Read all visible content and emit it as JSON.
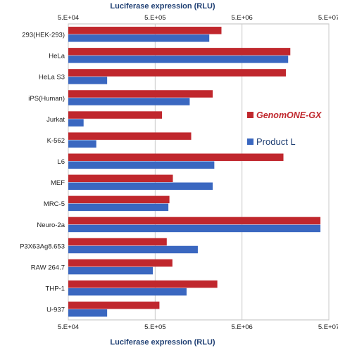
{
  "chart_data": {
    "type": "bar",
    "orientation": "horizontal",
    "x_scale": "log",
    "xlabel_top": "Luciferase expression (RLU)",
    "xlabel_bottom": "Luciferase expression (RLU)",
    "xlim": [
      50000,
      50000000
    ],
    "x_ticks": [
      50000,
      500000,
      5000000,
      50000000
    ],
    "x_tick_labels": [
      "5.E+04",
      "5.E+05",
      "5.E+06",
      "5.E+07"
    ],
    "grid": "vertical",
    "legend_position": "right",
    "categories": [
      "293(HEK-293)",
      "HeLa",
      "HeLa S3",
      "iPS(Human)",
      "Jurkat",
      "K-562",
      "L6",
      "MEF",
      "MRC-5",
      "Neuro-2a",
      "P3X63Ag8.653",
      "RAW 264.7",
      "THP-1",
      "U-937"
    ],
    "series": [
      {
        "name": "GenomONE-GX",
        "color": "#c0272d",
        "values": [
          2900000,
          18000000,
          16000000,
          2300000,
          600000,
          1300000,
          15000000,
          800000,
          730000,
          40000000,
          680000,
          790000,
          2600000,
          560000
        ]
      },
      {
        "name": "Product L",
        "color": "#3a67c0",
        "values": [
          2100000,
          17000000,
          140000,
          1250000,
          75000,
          105000,
          2400000,
          2300000,
          710000,
          40000000,
          1550000,
          470000,
          1150000,
          140000
        ]
      }
    ]
  }
}
